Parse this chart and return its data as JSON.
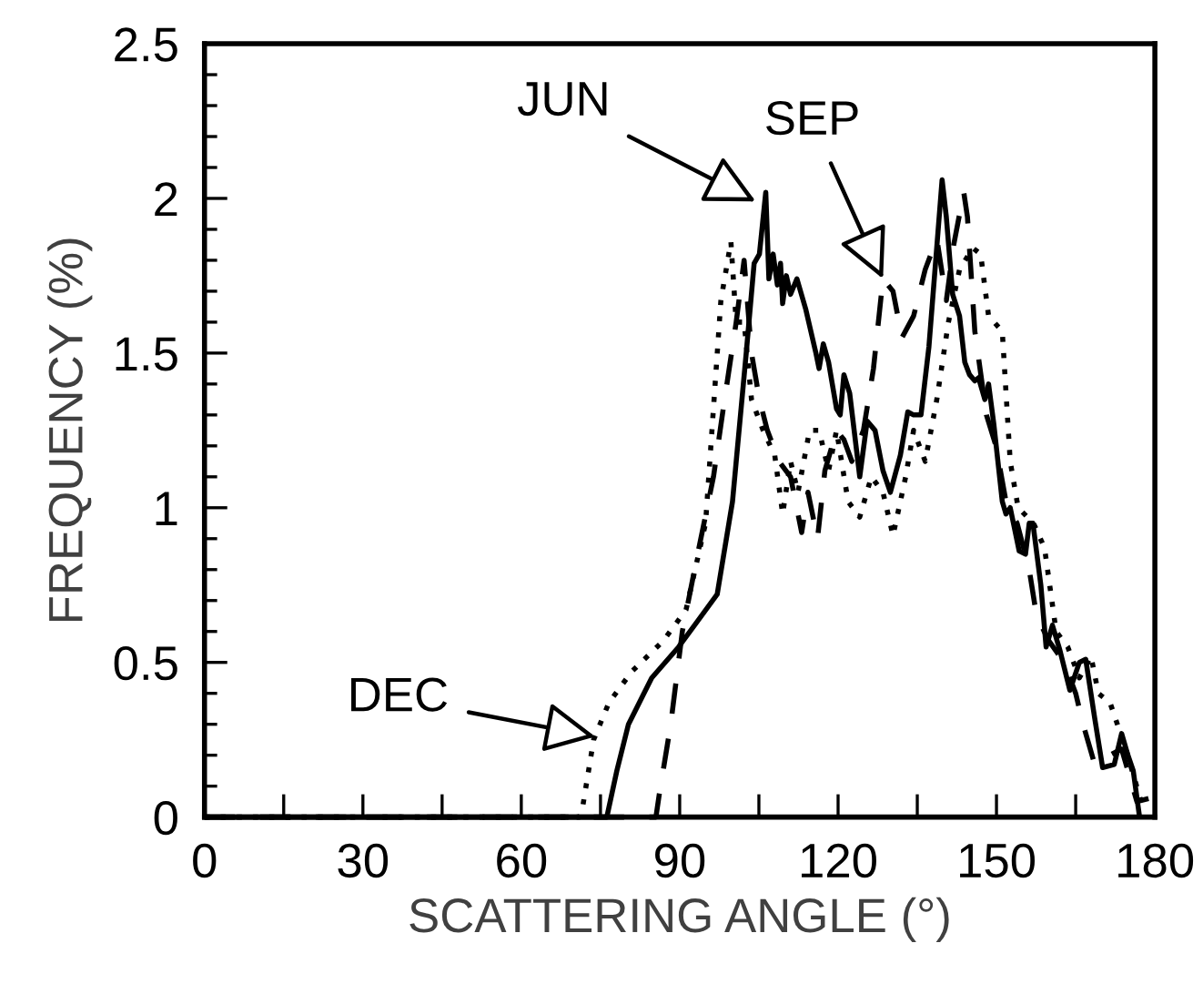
{
  "chart_data": {
    "type": "line",
    "xlabel": "SCATTERING ANGLE (°)",
    "ylabel": "FREQUENCY (%)",
    "xlim": [
      0,
      180
    ],
    "ylim": [
      0,
      2.5
    ],
    "xticks": [
      0,
      {
        "value": 15,
        "label": null
      },
      30,
      {
        "value": 45,
        "label": null
      },
      60,
      {
        "value": 75,
        "label": null
      },
      90,
      {
        "value": 105,
        "label": null
      },
      120,
      {
        "value": 135,
        "label": null
      },
      150,
      {
        "value": 165,
        "label": null
      },
      180
    ],
    "yticks": [
      0,
      {
        "value": 0.1,
        "label": null
      },
      {
        "value": 0.2,
        "label": null
      },
      {
        "value": 0.3,
        "label": null
      },
      {
        "value": 0.4,
        "label": null
      },
      0.5,
      {
        "value": 0.6,
        "label": null
      },
      {
        "value": 0.7,
        "label": null
      },
      {
        "value": 0.8,
        "label": null
      },
      {
        "value": 0.9,
        "label": null
      },
      1,
      {
        "value": 1.1,
        "label": null
      },
      {
        "value": 1.2,
        "label": null
      },
      {
        "value": 1.3,
        "label": null
      },
      {
        "value": 1.4,
        "label": null
      },
      1.5,
      {
        "value": 1.6,
        "label": null
      },
      {
        "value": 1.7,
        "label": null
      },
      {
        "value": 1.8,
        "label": null
      },
      {
        "value": 1.9,
        "label": null
      },
      2,
      {
        "value": 2.1,
        "label": null
      },
      {
        "value": 2.2,
        "label": null
      },
      {
        "value": 2.3,
        "label": null
      },
      {
        "value": 2.4,
        "label": null
      },
      2.5
    ],
    "grid": false,
    "legend": false,
    "marker": "none",
    "annotations": [
      {
        "text": "JUN",
        "x": 104.4,
        "y": 1.99
      },
      {
        "text": "SEP",
        "x": 128.5,
        "y": 1.74
      },
      {
        "text": "DEC",
        "x": 74,
        "y": 0.26
      }
    ],
    "series": [
      {
        "color": "#000000",
        "line_style": "solid",
        "x": [
          0,
          76.2,
          78.1,
          80.3,
          84.7,
          89.8,
          97.1,
          100,
          102.6,
          104.1,
          105.1,
          106.3,
          106.9,
          107.7,
          108.5,
          109.1,
          109.5,
          110.2,
          111,
          112.2,
          113.9,
          115.8,
          116.4,
          117.2,
          118.2,
          119.7,
          120.4,
          121.1,
          122.2,
          124.1,
          125.5,
          127,
          128.5,
          129.9,
          131.8,
          133.2,
          134.3,
          135.7,
          137.2,
          139.7,
          140.5,
          141.7,
          143,
          144,
          144.9,
          145.9,
          146.6,
          147.8,
          148.5,
          149.5,
          151.1,
          151.8,
          152.6,
          154.3,
          155.5,
          156.2,
          156.9,
          158.4,
          159.4,
          160.6,
          162,
          163.9,
          165.7,
          166.9,
          168.6,
          170.1,
          172.3,
          173.7,
          174.9,
          175.9,
          177.1
        ],
        "values": [
          0,
          0,
          0.15,
          0.3,
          0.45,
          0.55,
          0.72,
          1.02,
          1.5,
          1.79,
          1.82,
          2.02,
          1.74,
          1.82,
          1.72,
          1.79,
          1.66,
          1.75,
          1.69,
          1.74,
          1.64,
          1.5,
          1.45,
          1.53,
          1.47,
          1.32,
          1.3,
          1.43,
          1.37,
          1.1,
          1.28,
          1.25,
          1.12,
          1.05,
          1.17,
          1.31,
          1.3,
          1.3,
          1.52,
          2.06,
          1.94,
          1.69,
          1.62,
          1.47,
          1.43,
          1.41,
          1.42,
          1.35,
          1.4,
          1.27,
          1.02,
          0.98,
          1,
          0.86,
          0.85,
          0.95,
          0.95,
          0.75,
          0.55,
          0.62,
          0.54,
          0.41,
          0.5,
          0.51,
          0.32,
          0.16,
          0.17,
          0.27,
          0.2,
          0.15,
          0
        ]
      },
      {
        "color": "#000000",
        "line_style": "dashed",
        "x": [
          0,
          85.5,
          86.1,
          88.3,
          90.5,
          93.4,
          96.4,
          98.5,
          100.7,
          102.2,
          102.9,
          103.6,
          105.1,
          106.6,
          108.8,
          111,
          113.1,
          114.3,
          116.1,
          117.5,
          119.7,
          121.1,
          122.6,
          124.8,
          126.7,
          128.5,
          130.4,
          132.1,
          134.3,
          136.5,
          138.7,
          140.5,
          141.9,
          143.8,
          144.5,
          145.9,
          148.1,
          149.9,
          151.8,
          153.9,
          156.2,
          157.6,
          159.9,
          162.8,
          165,
          166.4,
          168.6,
          171.5,
          173.7,
          176.6,
          178.8
        ],
        "values": [
          0,
          0,
          0.07,
          0.3,
          0.6,
          0.85,
          1.1,
          1.35,
          1.6,
          1.8,
          1.65,
          1.5,
          1.35,
          1.25,
          1.15,
          1.1,
          0.92,
          1.05,
          0.9,
          1.12,
          1.25,
          1.22,
          1.15,
          1.25,
          1.45,
          1.74,
          1.7,
          1.55,
          1.62,
          1.77,
          1.87,
          1.67,
          1.85,
          2.02,
          1.94,
          1.57,
          1.3,
          1.2,
          1.02,
          0.95,
          0.8,
          0.65,
          0.57,
          0.5,
          0.4,
          0.3,
          0.17,
          0.2,
          0.22,
          0.05,
          0.06
        ]
      },
      {
        "color": "#000000",
        "line_style": "dotted",
        "x": [
          0,
          71,
          71.5,
          73.7,
          76.6,
          80.9,
          86.9,
          91.2,
          94.9,
          97.8,
          99.7,
          100.7,
          102.2,
          103.6,
          105.8,
          108,
          109.5,
          111,
          112.4,
          114.6,
          116.4,
          118.2,
          119.7,
          121.9,
          124.1,
          126.3,
          128.5,
          130.4,
          132.8,
          134.3,
          136.5,
          138.7,
          140.9,
          143,
          145.5,
          147,
          148.5,
          151.1,
          152.6,
          154.1,
          157,
          159.1,
          161.3,
          163.5,
          165.7,
          167.9,
          169.3,
          171.5,
          174.5,
          177.4
        ],
        "values": [
          0,
          0,
          0.02,
          0.25,
          0.37,
          0.47,
          0.57,
          0.67,
          0.95,
          1.67,
          1.86,
          1.6,
          1.6,
          1.35,
          1.25,
          1.17,
          0.98,
          1.15,
          1.05,
          1.25,
          1.25,
          1.12,
          1.25,
          1.02,
          0.97,
          1.1,
          1.05,
          0.91,
          1.1,
          1.25,
          1.15,
          1.35,
          1.6,
          1.77,
          1.84,
          1.82,
          1.62,
          1.57,
          1.15,
          1,
          0.95,
          0.87,
          0.6,
          0.55,
          0.45,
          0.52,
          0.4,
          0.37,
          0.22,
          0.05
        ]
      }
    ]
  }
}
